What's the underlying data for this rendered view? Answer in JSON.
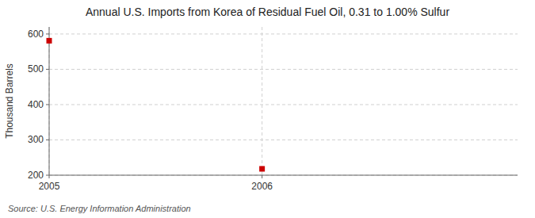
{
  "chart_data": {
    "type": "scatter",
    "title": "Annual U.S. Imports from Korea of Residual Fuel Oil, 0.31 to 1.00% Sulfur",
    "y_label": "Thousand Barrels",
    "annotations": [
      "Source: U.S. Energy Information Administration"
    ],
    "x": [
      2005,
      2006
    ],
    "values": [
      581,
      218
    ],
    "color": "#cc0000",
    "marker": "square",
    "xlim": [
      2005.0,
      2007.2
    ],
    "xticks": [
      2005,
      2006
    ],
    "ylim": [
      200,
      620
    ],
    "yticks": [
      200,
      300,
      400,
      500,
      600
    ],
    "grid": true
  }
}
